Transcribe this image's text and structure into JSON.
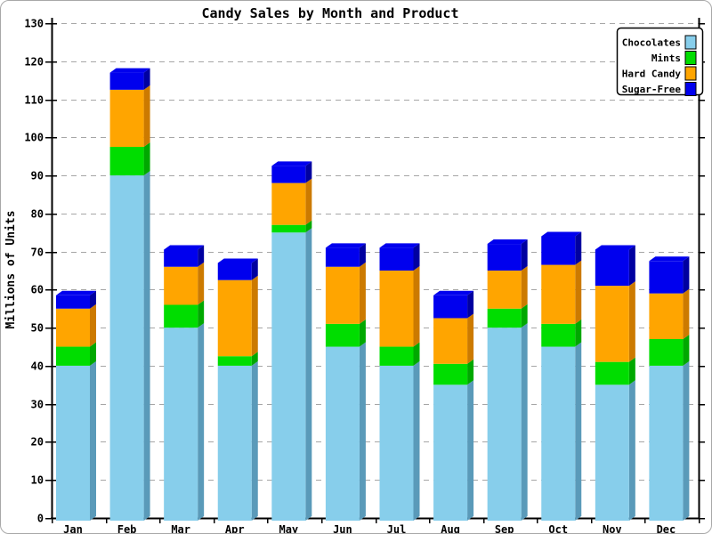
{
  "window": {
    "background": "#ffffff",
    "frame_border_color": "#a8a8a8"
  },
  "chart_data": {
    "type": "bar",
    "variant": "stacked-3d",
    "title": "Candy Sales by Month and Product",
    "xlabel": "",
    "ylabel": "Millions of Units",
    "ylim": [
      0,
      130
    ],
    "ytick_step": 10,
    "yticks": [
      0,
      10,
      20,
      30,
      40,
      50,
      60,
      70,
      80,
      90,
      100,
      110,
      120,
      130
    ],
    "grid": "horizontal-dashed",
    "grid_color": "#a6a6a6",
    "axis_color": "#000000",
    "legend_position": "top-right",
    "categories": [
      "Jan",
      "Feb",
      "Mar",
      "Apr",
      "May",
      "Jun",
      "Jul",
      "Aug",
      "Sep",
      "Oct",
      "Nov",
      "Dec"
    ],
    "series": [
      {
        "name": "Chocolates",
        "color": "#87CEEB",
        "side_color": "#5A9AB9",
        "values": [
          40,
          90,
          50,
          40,
          75,
          45,
          40,
          35,
          50,
          45,
          35,
          40
        ]
      },
      {
        "name": "Mints",
        "color": "#00DD00",
        "side_color": "#00A800",
        "values": [
          5,
          7.5,
          6,
          2.5,
          2,
          6,
          5,
          5.5,
          5,
          6,
          6,
          7
        ]
      },
      {
        "name": "Hard Candy",
        "color": "#FFA500",
        "side_color": "#CC7A00",
        "values": [
          10,
          15,
          10,
          20,
          11,
          15,
          20,
          12,
          10,
          15.5,
          20,
          12
        ]
      },
      {
        "name": "Sugar-Free",
        "color": "#0000EE",
        "side_color": "#0000A0",
        "values": [
          3.5,
          4.5,
          4.5,
          4.5,
          4.5,
          5,
          6,
          6,
          7,
          7.5,
          9.5,
          8.5
        ]
      }
    ],
    "totals": [
      58.5,
      117,
      70.5,
      67,
      92.5,
      71,
      71,
      58.5,
      72,
      74,
      70.5,
      67.5
    ]
  },
  "legend": {
    "entries": [
      "Chocolates",
      "Mints",
      "Hard Candy",
      "Sugar-Free"
    ]
  }
}
